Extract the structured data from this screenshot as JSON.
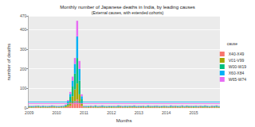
{
  "chart_data": {
    "type": "bar",
    "title": "Monthly number of Japanese deaths in India, by leading causes",
    "subtitle": "(External causes, with extended cohorts)",
    "x_label": "Months",
    "y_label": "number of deaths",
    "legend_title": "cause",
    "categories": [
      "2009",
      null,
      null,
      null,
      null,
      null,
      null,
      null,
      null,
      null,
      null,
      null,
      "2010",
      null,
      null,
      null,
      null,
      null,
      null,
      null,
      null,
      null,
      null,
      null,
      "2011",
      null,
      null,
      null,
      null,
      null,
      null,
      null,
      null,
      null,
      null,
      null,
      "2012",
      null,
      null,
      null,
      null,
      null,
      null,
      null,
      null,
      null,
      null,
      null,
      "2013",
      null,
      null,
      null,
      null,
      null,
      null,
      null,
      null,
      null,
      null,
      null,
      "2014",
      null,
      null,
      null,
      null,
      null,
      null,
      null,
      null,
      null,
      null,
      null,
      "2015",
      null,
      null,
      null,
      null,
      null,
      null,
      null,
      null,
      null,
      null,
      null
    ],
    "series": [
      {
        "name": "X40-X49",
        "color": "#F8766D",
        "values": [
          3,
          2,
          3,
          4,
          3,
          2,
          3,
          3,
          2,
          3,
          4,
          3,
          3,
          2,
          3,
          3,
          4,
          6,
          12,
          20,
          35,
          45,
          25,
          10,
          3,
          3,
          2,
          4,
          3,
          3,
          2,
          3,
          4,
          3,
          2,
          3,
          2,
          3,
          3,
          2,
          4,
          3,
          3,
          2,
          3,
          3,
          4,
          2,
          3,
          2,
          4,
          3,
          3,
          2,
          3,
          4,
          3,
          2,
          3,
          3,
          3,
          3,
          2,
          3,
          4,
          3,
          2,
          3,
          3,
          4,
          2,
          3,
          2,
          3,
          3,
          4,
          2,
          3,
          3,
          2,
          4,
          3,
          3,
          2
        ]
      },
      {
        "name": "V01-V99",
        "color": "#A3A500",
        "values": [
          3,
          3,
          2,
          3,
          4,
          3,
          2,
          3,
          3,
          2,
          3,
          4,
          2,
          3,
          2,
          3,
          5,
          10,
          20,
          40,
          60,
          80,
          45,
          15,
          3,
          2,
          3,
          3,
          2,
          4,
          3,
          3,
          2,
          3,
          3,
          2,
          3,
          3,
          2,
          4,
          3,
          2,
          3,
          3,
          4,
          2,
          3,
          3,
          2,
          3,
          3,
          2,
          3,
          4,
          3,
          2,
          3,
          3,
          2,
          4,
          3,
          2,
          4,
          3,
          3,
          2,
          3,
          4,
          2,
          3,
          3,
          3,
          3,
          3,
          2,
          3,
          3,
          4,
          2,
          3,
          3,
          2,
          4,
          3
        ]
      },
      {
        "name": "W00-W19",
        "color": "#00BF7D",
        "values": [
          2,
          3,
          2,
          2,
          3,
          2,
          3,
          2,
          2,
          3,
          2,
          2,
          2,
          2,
          3,
          2,
          4,
          12,
          25,
          50,
          80,
          130,
          70,
          20,
          2,
          2,
          3,
          2,
          2,
          3,
          2,
          2,
          3,
          2,
          2,
          3,
          3,
          2,
          2,
          3,
          2,
          2,
          3,
          2,
          2,
          3,
          2,
          2,
          2,
          3,
          2,
          2,
          3,
          2,
          2,
          3,
          2,
          2,
          3,
          2,
          2,
          2,
          3,
          2,
          2,
          3,
          2,
          3,
          2,
          2,
          3,
          2,
          3,
          2,
          2,
          2,
          3,
          2,
          3,
          2,
          2,
          3,
          2,
          2
        ]
      },
      {
        "name": "X60-X84",
        "color": "#00B0F6",
        "values": [
          2,
          2,
          3,
          2,
          2,
          2,
          3,
          2,
          2,
          2,
          3,
          2,
          2,
          2,
          2,
          3,
          3,
          8,
          15,
          30,
          50,
          110,
          60,
          15,
          2,
          3,
          2,
          2,
          2,
          3,
          2,
          2,
          3,
          2,
          2,
          2,
          2,
          2,
          2,
          3,
          2,
          2,
          2,
          3,
          2,
          2,
          3,
          2,
          3,
          2,
          2,
          2,
          3,
          2,
          2,
          2,
          3,
          2,
          2,
          2,
          2,
          2,
          3,
          2,
          2,
          2,
          3,
          2,
          2,
          3,
          2,
          2,
          2,
          3,
          2,
          2,
          2,
          3,
          2,
          2,
          2,
          2,
          3,
          2
        ]
      },
      {
        "name": "W65-W74",
        "color": "#E76BF3",
        "values": [
          2,
          1,
          2,
          2,
          1,
          2,
          2,
          1,
          2,
          2,
          2,
          1,
          2,
          2,
          2,
          2,
          2,
          5,
          10,
          20,
          30,
          80,
          40,
          10,
          2,
          2,
          1,
          2,
          2,
          1,
          2,
          2,
          2,
          1,
          2,
          2,
          1,
          2,
          2,
          2,
          1,
          2,
          2,
          2,
          1,
          2,
          2,
          2,
          2,
          2,
          2,
          1,
          2,
          2,
          1,
          2,
          2,
          2,
          1,
          2,
          2,
          1,
          2,
          2,
          2,
          1,
          2,
          2,
          2,
          1,
          2,
          2,
          1,
          2,
          2,
          2,
          1,
          2,
          2,
          1,
          2,
          2,
          2,
          2
        ]
      }
    ],
    "hlines": [
      {
        "value": 30,
        "color": "#00B0F6"
      },
      {
        "value": 22,
        "color": "#E76BF3"
      }
    ],
    "ylim": [
      0,
      470
    ],
    "yticks": [
      0,
      100,
      200,
      300,
      400
    ],
    "stacked": true,
    "grid": true,
    "legend": "right"
  }
}
